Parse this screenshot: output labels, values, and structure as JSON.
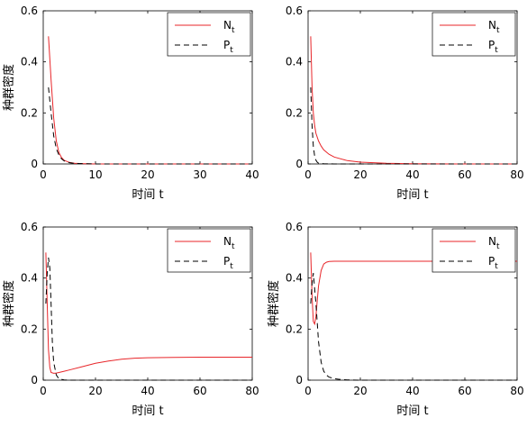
{
  "chart_data": [
    {
      "type": "line",
      "xlabel": "时间 t",
      "ylabel": "种群密度",
      "xlim": [
        0,
        40
      ],
      "ylim": [
        0,
        0.6
      ],
      "xticks": [
        0,
        10,
        20,
        30,
        40
      ],
      "xtick_labels": [
        "0",
        "10",
        "20",
        "30",
        "40"
      ],
      "yticks": [
        0,
        0.2,
        0.4,
        0.6
      ],
      "ytick_labels": [
        "0",
        "0.2",
        "0.4",
        "0.6"
      ],
      "legend_position": "top-right",
      "series": [
        {
          "name": "N",
          "subscript": "t",
          "color": "#e8262a",
          "dash": "solid",
          "x": [
            1,
            1.5,
            2,
            2.5,
            3,
            3.5,
            4,
            5,
            6,
            8,
            10,
            20,
            30,
            40
          ],
          "y": [
            0.5,
            0.33,
            0.18,
            0.09,
            0.045,
            0.025,
            0.014,
            0.006,
            0.003,
            0.001,
            0,
            0,
            0,
            0
          ]
        },
        {
          "name": "P",
          "subscript": "t",
          "color": "#000000",
          "dash": "dashed",
          "x": [
            1,
            1.5,
            2,
            2.5,
            3,
            3.5,
            4,
            5,
            6,
            8,
            10,
            20,
            30,
            40
          ],
          "y": [
            0.3,
            0.2,
            0.11,
            0.06,
            0.035,
            0.02,
            0.012,
            0.005,
            0.002,
            0.001,
            0,
            0,
            0,
            0
          ]
        }
      ]
    },
    {
      "type": "line",
      "xlabel": "时间 t",
      "ylabel": "",
      "xlim": [
        0,
        80
      ],
      "ylim": [
        0,
        0.6
      ],
      "xticks": [
        0,
        20,
        40,
        60,
        80
      ],
      "xtick_labels": [
        "0",
        "20",
        "40",
        "60",
        "80"
      ],
      "yticks": [
        0,
        0.2,
        0.4,
        0.6
      ],
      "ytick_labels": [
        "0",
        "0.2",
        "0.4",
        "0.6"
      ],
      "legend_position": "top-right",
      "series": [
        {
          "name": "N",
          "subscript": "t",
          "color": "#e8262a",
          "dash": "solid",
          "x": [
            1,
            1.5,
            2,
            2.5,
            3,
            4,
            5,
            6,
            8,
            10,
            15,
            20,
            30,
            40,
            60,
            80
          ],
          "y": [
            0.5,
            0.3,
            0.2,
            0.15,
            0.12,
            0.09,
            0.07,
            0.055,
            0.038,
            0.027,
            0.013,
            0.007,
            0.003,
            0.001,
            0,
            0
          ]
        },
        {
          "name": "P",
          "subscript": "t",
          "color": "#000000",
          "dash": "dashed",
          "x": [
            1,
            1.5,
            2,
            2.5,
            3,
            3.5,
            4,
            6,
            10,
            20,
            40,
            60,
            80
          ],
          "y": [
            0.3,
            0.15,
            0.07,
            0.03,
            0.015,
            0.007,
            0.003,
            0.001,
            0,
            0,
            0,
            0,
            0
          ]
        }
      ]
    },
    {
      "type": "line",
      "xlabel": "时间 t",
      "ylabel": "种群密度",
      "xlim": [
        0,
        80
      ],
      "ylim": [
        0,
        0.6
      ],
      "xticks": [
        0,
        20,
        40,
        60,
        80
      ],
      "xtick_labels": [
        "0",
        "20",
        "40",
        "60",
        "80"
      ],
      "yticks": [
        0,
        0.2,
        0.4,
        0.6
      ],
      "ytick_labels": [
        "0",
        "0.2",
        "0.4",
        "0.6"
      ],
      "legend_position": "top-right",
      "series": [
        {
          "name": "N",
          "subscript": "t",
          "color": "#e8262a",
          "dash": "solid",
          "x": [
            1,
            1.5,
            2,
            2.5,
            3,
            4,
            5,
            6,
            8,
            10,
            15,
            20,
            25,
            30,
            35,
            40,
            50,
            60,
            70,
            80
          ],
          "y": [
            0.5,
            0.3,
            0.12,
            0.05,
            0.03,
            0.027,
            0.028,
            0.03,
            0.035,
            0.04,
            0.053,
            0.066,
            0.075,
            0.082,
            0.086,
            0.088,
            0.089,
            0.09,
            0.09,
            0.09
          ]
        },
        {
          "name": "P",
          "subscript": "t",
          "color": "#000000",
          "dash": "dashed",
          "x": [
            1,
            1.5,
            2,
            2.5,
            3,
            3.5,
            4,
            5,
            6,
            8,
            10,
            20,
            40,
            60,
            80
          ],
          "y": [
            0.3,
            0.42,
            0.48,
            0.44,
            0.3,
            0.15,
            0.07,
            0.02,
            0.005,
            0.001,
            0,
            0,
            0,
            0,
            0
          ]
        }
      ]
    },
    {
      "type": "line",
      "xlabel": "时间 t",
      "ylabel": "种群密度",
      "xlim": [
        0,
        80
      ],
      "ylim": [
        0,
        0.6
      ],
      "xticks": [
        0,
        20,
        40,
        60,
        80
      ],
      "xtick_labels": [
        "0",
        "20",
        "40",
        "60",
        "80"
      ],
      "yticks": [
        0,
        0.2,
        0.4,
        0.6
      ],
      "ytick_labels": [
        "0",
        "0.2",
        "0.4",
        "0.6"
      ],
      "legend_position": "top-right",
      "series": [
        {
          "name": "N",
          "subscript": "t",
          "color": "#e8262a",
          "dash": "solid",
          "x": [
            1,
            1.5,
            2,
            2.5,
            3,
            3.5,
            4,
            5,
            6,
            7,
            8,
            10,
            15,
            20,
            40,
            60,
            80
          ],
          "y": [
            0.5,
            0.33,
            0.23,
            0.22,
            0.25,
            0.31,
            0.37,
            0.43,
            0.455,
            0.462,
            0.465,
            0.466,
            0.466,
            0.466,
            0.466,
            0.466,
            0.466
          ]
        },
        {
          "name": "P",
          "subscript": "t",
          "color": "#000000",
          "dash": "dashed",
          "x": [
            1,
            1.5,
            2,
            3,
            4,
            5,
            6,
            7,
            8,
            10,
            12,
            15,
            20,
            40,
            60,
            80
          ],
          "y": [
            0.3,
            0.38,
            0.42,
            0.3,
            0.15,
            0.07,
            0.035,
            0.02,
            0.012,
            0.006,
            0.003,
            0.001,
            0,
            0,
            0,
            0
          ]
        }
      ]
    }
  ]
}
